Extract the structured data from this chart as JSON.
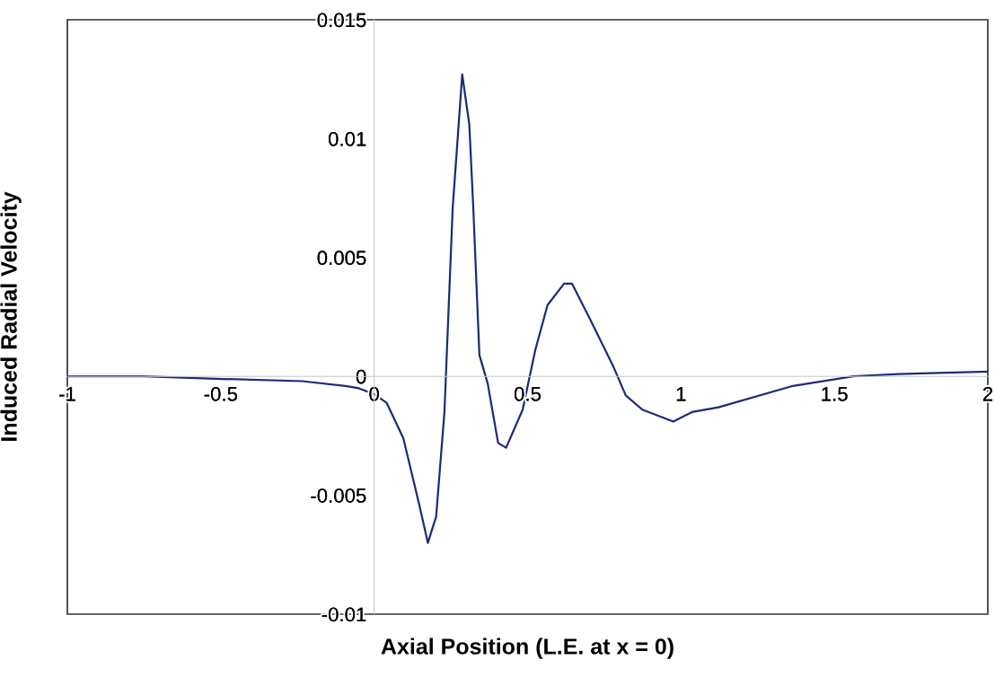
{
  "chart_data": {
    "type": "line",
    "xlabel": "Axial Position (L.E. at x = 0)",
    "ylabel": "Induced Radial Velocity",
    "x": [
      -1,
      -0.75,
      -0.517,
      -0.235,
      -0.094,
      -0.05,
      0.0,
      0.04,
      0.095,
      0.147,
      0.175,
      0.202,
      0.229,
      0.256,
      0.287,
      0.31,
      0.323,
      0.343,
      0.37,
      0.404,
      0.43,
      0.484,
      0.525,
      0.565,
      0.619,
      0.645,
      0.7,
      0.78,
      0.82,
      0.874,
      0.975,
      1.036,
      1.122,
      1.365,
      1.561,
      1.707,
      2.0
    ],
    "series": [
      {
        "color": "#1f2a78",
        "values": [
          0.0,
          0.0,
          -0.0001,
          -0.0002,
          -0.0004,
          -0.0005,
          -0.00075,
          -0.0011,
          -0.0026,
          -0.0054,
          -0.007,
          -0.0059,
          -0.0015,
          0.0071,
          0.0127,
          0.0106,
          0.0071,
          0.0009,
          -0.0003,
          -0.0028,
          -0.003,
          -0.0014,
          0.0011,
          0.003,
          0.0039,
          0.0039,
          0.0025,
          0.0004,
          -0.0008,
          -0.0014,
          -0.0019,
          -0.0015,
          -0.0013,
          -0.0004,
          0.0,
          0.0001,
          0.0002
        ]
      }
    ],
    "xlim": [
      -1,
      2
    ],
    "ylim": [
      -0.01,
      0.015
    ],
    "xticks": [
      -1,
      -0.5,
      0,
      0.5,
      1,
      1.5,
      2
    ],
    "yticks": [
      -0.01,
      -0.005,
      0,
      0.005,
      0.01,
      0.015
    ],
    "grid": false,
    "legend": false,
    "marker": "none",
    "line_style": "solid"
  }
}
